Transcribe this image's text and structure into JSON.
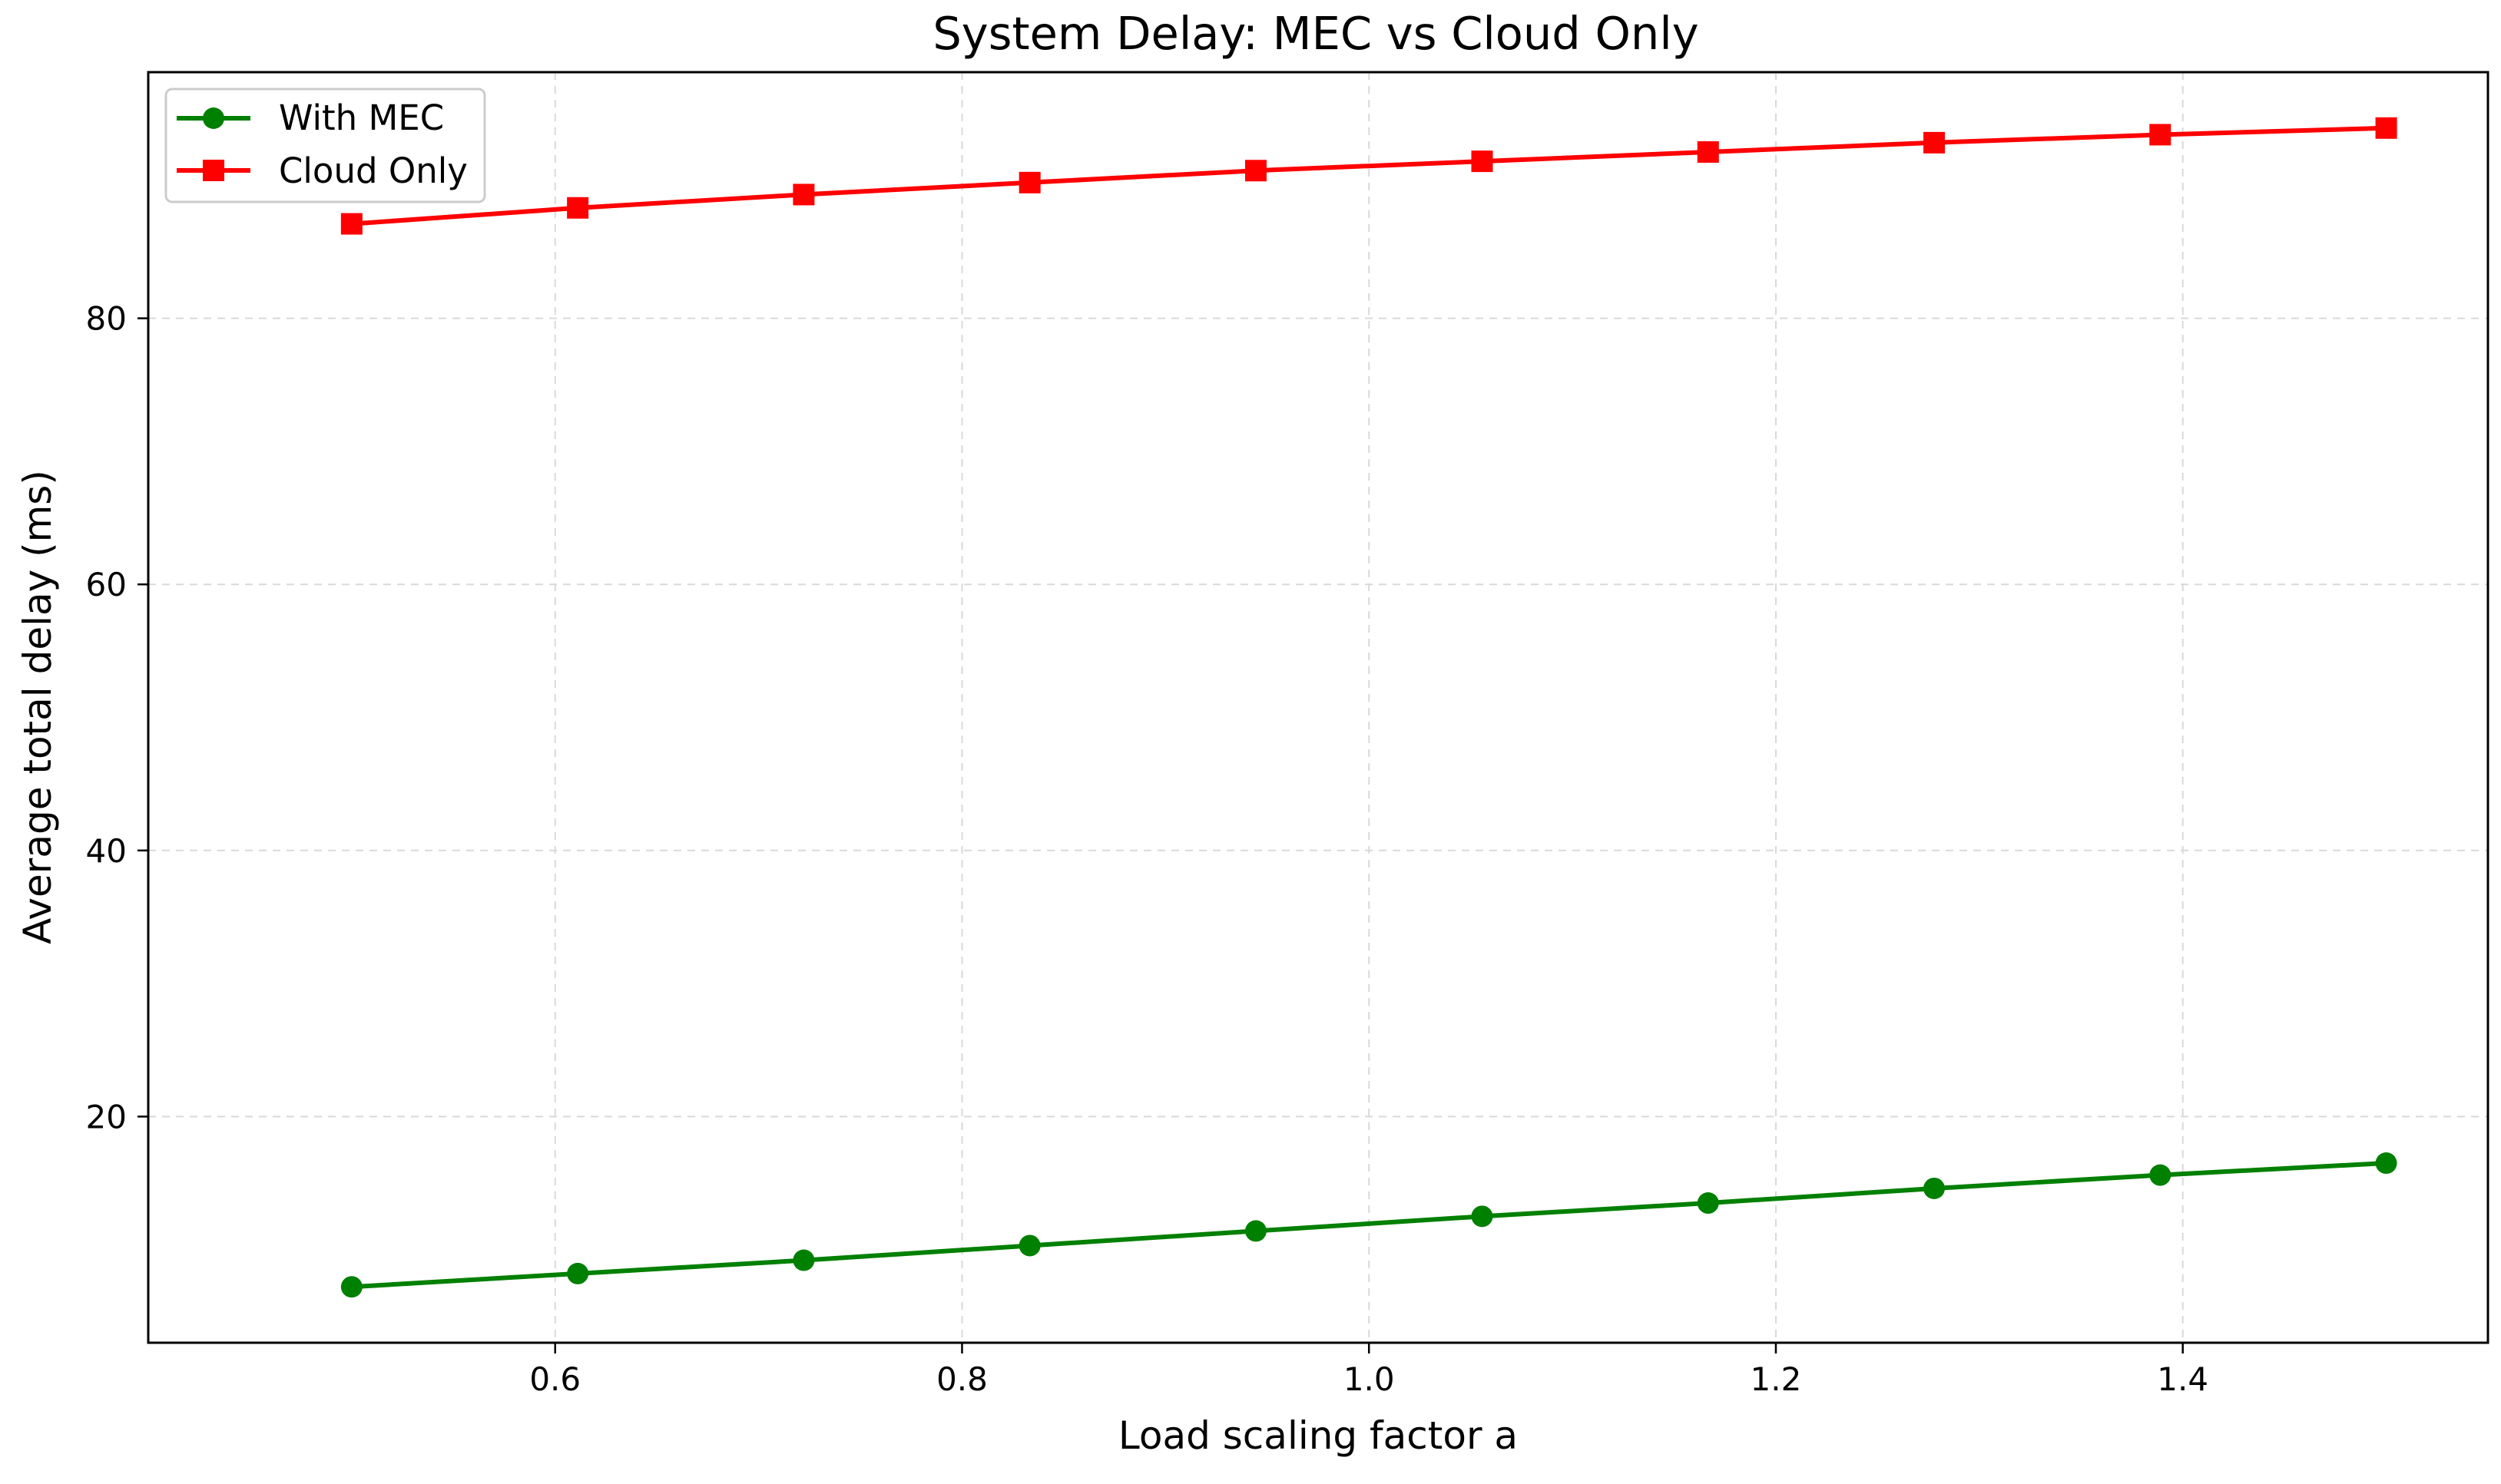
{
  "chart_data": {
    "type": "line",
    "title": "System Delay: MEC vs Cloud Only",
    "xlabel": "Load scaling factor a",
    "ylabel": "Average total delay (ms)",
    "xlim": [
      0.4,
      1.55
    ],
    "ylim": [
      3,
      98.5
    ],
    "x_ticks": [
      0.6,
      0.8,
      1.0,
      1.2,
      1.4
    ],
    "x_tick_labels": [
      "0.6",
      "0.8",
      "1.0",
      "1.2",
      "1.4"
    ],
    "y_ticks": [
      20,
      40,
      60,
      80
    ],
    "y_tick_labels": [
      "20",
      "40",
      "60",
      "80"
    ],
    "grid": true,
    "legend_position": "upper-left",
    "x": [
      0.5,
      0.6111,
      0.7222,
      0.8333,
      0.9444,
      1.0556,
      1.1667,
      1.2778,
      1.3889,
      1.5
    ],
    "series": [
      {
        "name": "With MEC",
        "color": "#008000",
        "marker": "circle",
        "values": [
          7.2,
          8.2,
          9.2,
          10.3,
          11.4,
          12.5,
          13.5,
          14.6,
          15.6,
          16.5
        ]
      },
      {
        "name": "Cloud Only",
        "color": "#ff0000",
        "marker": "square",
        "values": [
          87.1,
          88.3,
          89.3,
          90.2,
          91.1,
          91.8,
          92.5,
          93.2,
          93.8,
          94.3
        ]
      }
    ]
  }
}
